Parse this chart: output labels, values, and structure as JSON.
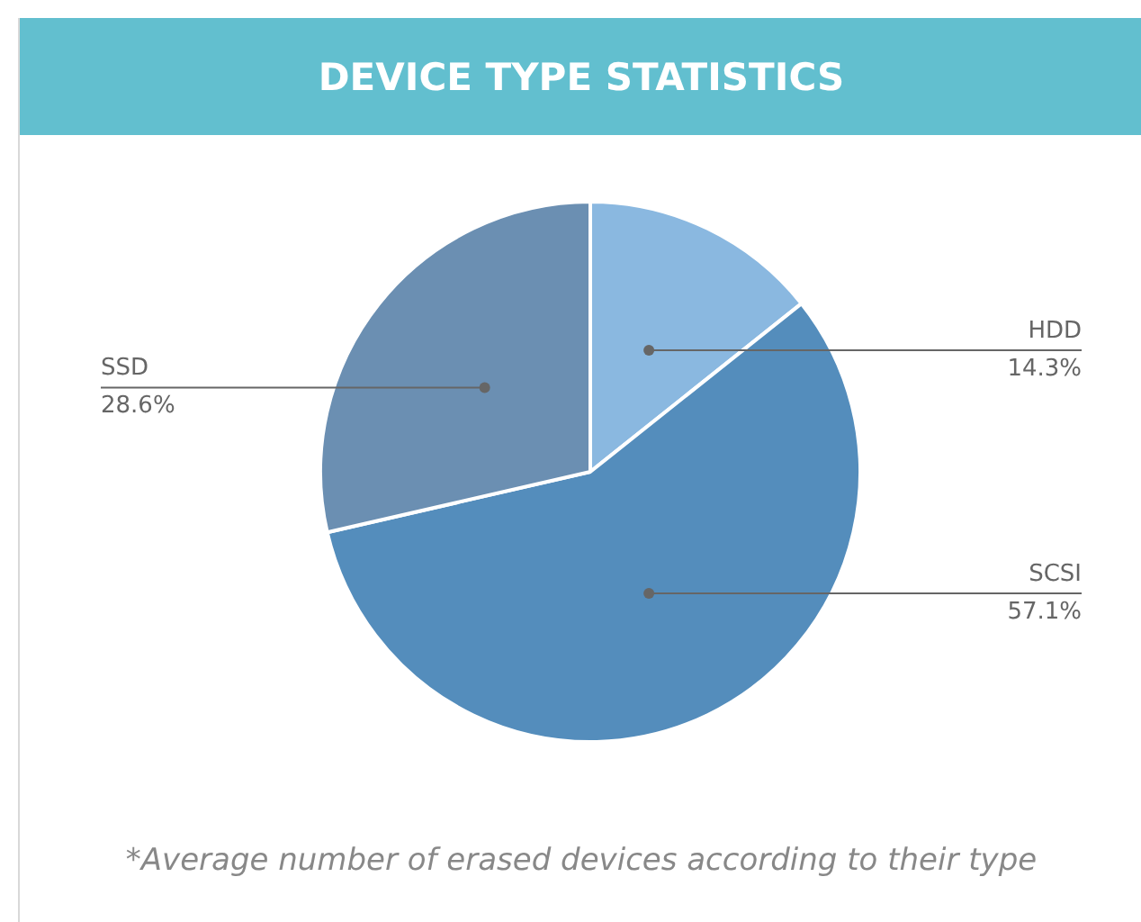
{
  "chart_data": {
    "type": "pie",
    "title": "DEVICE TYPE STATISTICS",
    "categories": [
      "HDD",
      "SCSI",
      "SSD"
    ],
    "values": [
      14.3,
      57.1,
      28.6
    ],
    "value_labels": [
      "14.3%",
      "57.1%",
      "28.6%"
    ],
    "colors": [
      "#8ab8e0",
      "#548dbc",
      "#6b8fb2"
    ],
    "legend": false,
    "annotations": [
      "*Average number of erased devices according to their type"
    ]
  }
}
